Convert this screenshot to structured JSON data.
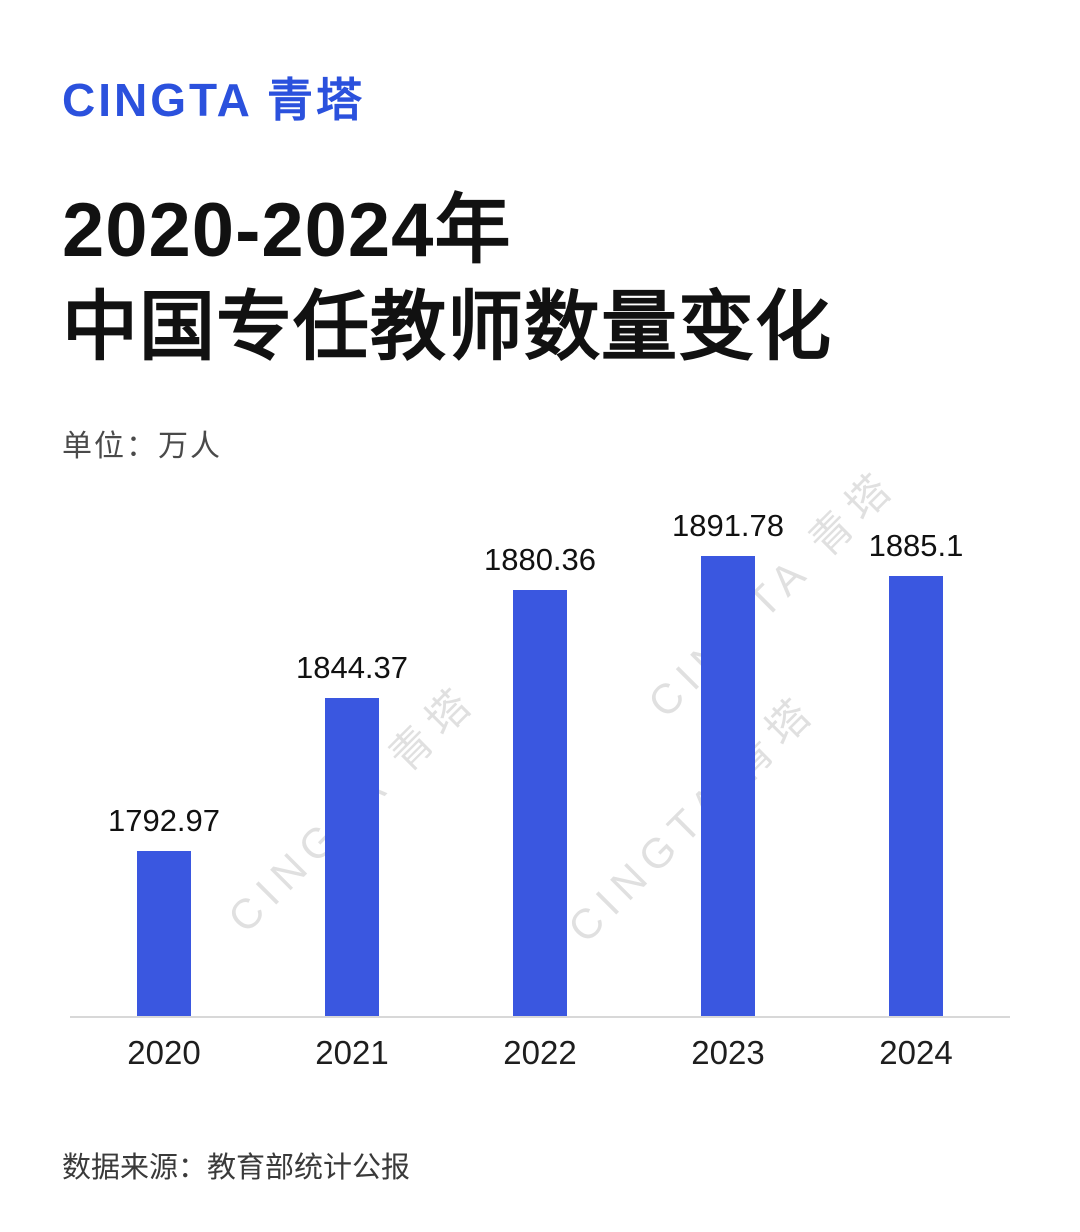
{
  "page": {
    "background": "#ffffff"
  },
  "header": {
    "logo_text": "CINGTA 青塔",
    "logo_color": "#2b51dd"
  },
  "title": {
    "line1": "2020-2024年",
    "line2": "中国专任教师数量变化"
  },
  "unit_label": "单位：万人",
  "watermark": {
    "text": "CINGTA 青塔"
  },
  "footer": {
    "source": "数据来源：教育部统计公报"
  },
  "chart_data": {
    "type": "bar",
    "title": "2020-2024年中国专任教师数量变化",
    "unit": "万人",
    "categories": [
      "2020",
      "2021",
      "2022",
      "2023",
      "2024"
    ],
    "values": [
      1792.97,
      1844.37,
      1880.36,
      1891.78,
      1885.1
    ],
    "value_labels": [
      "1792.97",
      "1844.37",
      "1880.36",
      "1891.78",
      "1885.1"
    ],
    "bar_color": "#3a57e0",
    "ylim": [
      1738,
      1895
    ],
    "grid": false,
    "legend": false,
    "xlabel": "",
    "ylabel": ""
  }
}
